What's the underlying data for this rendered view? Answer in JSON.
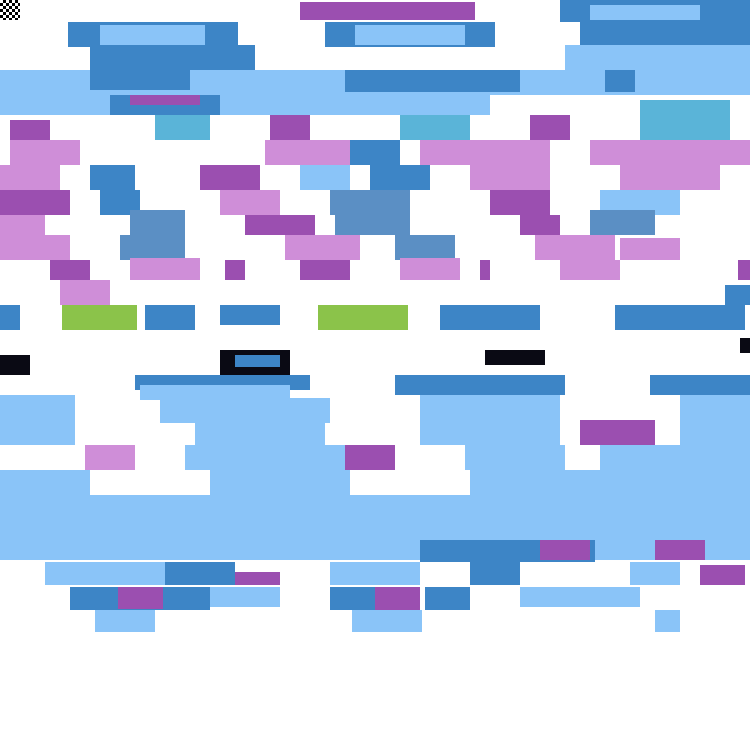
{
  "atlas": {
    "colors": {
      "light_blue": "#8ac4f8",
      "mid_blue": "#3d85c6",
      "purple": "#9b4fb0",
      "light_purple": "#cf8ed8",
      "green": "#8bc34a",
      "teal": "#5ab4d8",
      "steel_blue": "#5b8fc4",
      "black": "#0a0a14",
      "background": "#ffffff"
    },
    "icon": "checkerboard-icon"
  }
}
